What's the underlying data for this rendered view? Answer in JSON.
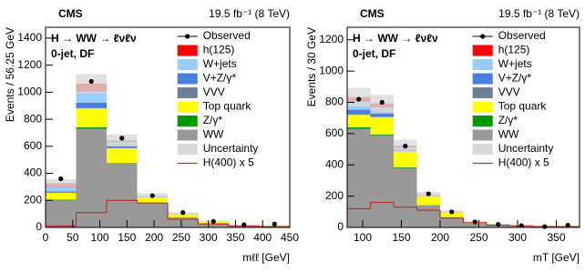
{
  "chart_data": [
    {
      "type": "histogram",
      "experiment": "CMS",
      "lumi": "19.5 fb⁻¹ (8 TeV)",
      "annotations": [
        "H → WW → ℓνℓν",
        "0-jet, DF"
      ],
      "x_label": "mℓℓ [GeV]",
      "y_label": "Events / 56.25 GeV",
      "bins": [
        0,
        56.25,
        112.5,
        168.75,
        225,
        281.25,
        337.5,
        393.75,
        450
      ],
      "xlim": [
        0,
        450
      ],
      "xticks": [
        0,
        50,
        100,
        150,
        200,
        250,
        300,
        350,
        400,
        450
      ],
      "ylim": [
        0,
        1480
      ],
      "yticks": [
        0,
        200,
        400,
        600,
        800,
        1000,
        1200,
        1400
      ],
      "series": [
        {
          "name": "h(125)",
          "color": "#ff0000",
          "values": [
            30,
            60,
            10,
            1,
            1,
            0,
            0,
            0
          ]
        },
        {
          "name": "W+jets",
          "color": "#99ccff",
          "values": [
            30,
            80,
            25,
            5,
            3,
            1,
            1,
            0
          ]
        },
        {
          "name": "V+Z/γ*",
          "color": "#4a7fe0",
          "values": [
            10,
            40,
            20,
            5,
            2,
            1,
            0,
            0
          ]
        },
        {
          "name": "VVV",
          "color": "#6f7f95",
          "values": [
            2,
            3,
            3,
            1,
            0,
            0,
            0,
            0
          ]
        },
        {
          "name": "Top quark",
          "color": "#ffff00",
          "values": [
            50,
            140,
            110,
            40,
            20,
            12,
            7,
            5
          ]
        },
        {
          "name": "Z/γ*",
          "color": "#009900",
          "values": [
            5,
            10,
            5,
            2,
            1,
            1,
            0,
            0
          ]
        },
        {
          "name": "WW",
          "color": "#999999",
          "values": [
            200,
            730,
            470,
            180,
            75,
            30,
            12,
            9
          ]
        }
      ],
      "observed": {
        "name": "Observed",
        "values": [
          360,
          1080,
          660,
          235,
          110,
          45,
          20,
          25
        ]
      },
      "uncertainty": {
        "name": "Uncertainty",
        "color": "#d9d9d9",
        "values": [
          30,
          70,
          45,
          18,
          10,
          5,
          3,
          3
        ]
      },
      "signal": {
        "name": "H(400) x 5",
        "color": "#c03030",
        "values": [
          10,
          110,
          200,
          180,
          60,
          25,
          10,
          5
        ]
      }
    },
    {
      "type": "histogram",
      "experiment": "CMS",
      "lumi": "19.5 fb⁻¹ (8 TeV)",
      "annotations": [
        "H → WW → ℓνℓν",
        "0-jet, DF"
      ],
      "x_label": "mT [GeV]",
      "y_label": "Events / 30 GeV",
      "bins": [
        80,
        110,
        140,
        170,
        200,
        230,
        260,
        290,
        320,
        350,
        380
      ],
      "xlim": [
        80,
        380
      ],
      "xticks": [
        100,
        150,
        200,
        250,
        300,
        350
      ],
      "ylim": [
        0,
        1280
      ],
      "yticks": [
        0,
        200,
        400,
        600,
        800,
        1000,
        1200
      ],
      "series": [
        {
          "name": "h(125)",
          "color": "#ff0000",
          "values": [
            30,
            25,
            10,
            2,
            1,
            0,
            0,
            0,
            0,
            0
          ]
        },
        {
          "name": "W+jets",
          "color": "#99ccff",
          "values": [
            50,
            40,
            15,
            6,
            2,
            1,
            0,
            0,
            0,
            0
          ]
        },
        {
          "name": "V+Z/γ*",
          "color": "#4a7fe0",
          "values": [
            30,
            20,
            10,
            5,
            2,
            1,
            1,
            0,
            0,
            0
          ]
        },
        {
          "name": "VVV",
          "color": "#6f7f95",
          "values": [
            3,
            3,
            2,
            1,
            0,
            0,
            0,
            0,
            0,
            0
          ]
        },
        {
          "name": "Top quark",
          "color": "#ffff00",
          "values": [
            80,
            110,
            100,
            55,
            30,
            12,
            7,
            4,
            3,
            3
          ]
        },
        {
          "name": "Z/γ*",
          "color": "#009900",
          "values": [
            10,
            5,
            5,
            2,
            1,
            0,
            0,
            0,
            0,
            0
          ]
        },
        {
          "name": "WW",
          "color": "#999999",
          "values": [
            630,
            590,
            380,
            140,
            65,
            25,
            12,
            7,
            5,
            5
          ]
        }
      ],
      "observed": {
        "name": "Observed",
        "values": [
          820,
          800,
          520,
          215,
          100,
          35,
          20,
          12,
          5,
          15
        ]
      },
      "uncertainty": {
        "name": "Uncertainty",
        "color": "#d9d9d9",
        "values": [
          60,
          55,
          40,
          16,
          9,
          4,
          3,
          2,
          2,
          2
        ]
      },
      "signal": {
        "name": "H(400) x 5",
        "color": "#c03030",
        "values": [
          120,
          160,
          130,
          110,
          60,
          30,
          15,
          10,
          5,
          5
        ]
      }
    }
  ]
}
